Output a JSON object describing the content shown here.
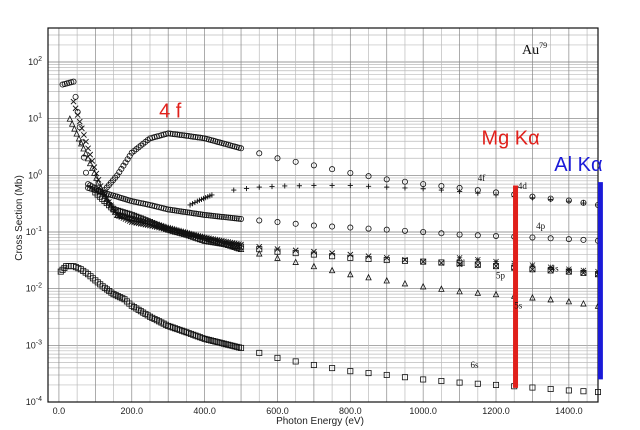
{
  "chart_data": {
    "type": "scatter",
    "title": "",
    "element_label": "Au",
    "element_superscript": "79",
    "xlabel": "Photon Energy (eV)",
    "ylabel": "Cross Section (Mb)",
    "xlim": [
      -30,
      1480
    ],
    "ylim_log10": [
      -4,
      2.6
    ],
    "log_y": true,
    "grid": true,
    "x_ticks": [
      "0.0",
      "200.0",
      "400.0",
      "600.0",
      "800.0",
      "1000.0",
      "1200.0",
      "1400.0"
    ],
    "x_tick_values": [
      0,
      200,
      400,
      600,
      800,
      1000,
      1200,
      1400
    ],
    "y_ticks": [
      {
        "exp": -4,
        "base": "10",
        "sup": "-4"
      },
      {
        "exp": -3,
        "base": "10",
        "sup": "-3"
      },
      {
        "exp": -2,
        "base": "10",
        "sup": "-2"
      },
      {
        "exp": -1,
        "base": "10",
        "sup": "-1"
      },
      {
        "exp": 0,
        "base": "10",
        "sup": "0"
      },
      {
        "exp": 1,
        "base": "10",
        "sup": "1"
      },
      {
        "exp": 2,
        "base": "10",
        "sup": "2"
      }
    ],
    "series": [
      {
        "name": "4f",
        "marker": "circle",
        "color": "#111111",
        "x": [
          10,
          40,
          80,
          120,
          160,
          200,
          250,
          300,
          350,
          400,
          500,
          600,
          700,
          800,
          900,
          1000,
          1100,
          1200,
          1300,
          1400,
          1480
        ],
        "y": [
          40,
          45,
          0.6,
          0.5,
          1.0,
          2.5,
          4.5,
          5.5,
          5.0,
          4.5,
          3.0,
          2.0,
          1.5,
          1.1,
          0.85,
          0.7,
          0.6,
          0.5,
          0.42,
          0.36,
          0.3
        ]
      },
      {
        "name": "4d",
        "marker": "plus",
        "color": "#111111",
        "x": [
          360,
          380,
          420,
          480,
          550,
          620,
          700,
          800,
          900,
          1000,
          1100,
          1200,
          1300,
          1400,
          1480
        ],
        "y": [
          0.3,
          0.35,
          0.45,
          0.55,
          0.62,
          0.65,
          0.66,
          0.66,
          0.62,
          0.58,
          0.52,
          0.45,
          0.4,
          0.35,
          0.3
        ]
      },
      {
        "name": "4p",
        "marker": "circle",
        "color": "#111111",
        "x": [
          80,
          120,
          160,
          200,
          250,
          300,
          400,
          500,
          600,
          700,
          800,
          900,
          1000,
          1100,
          1200,
          1300,
          1400,
          1480
        ],
        "y": [
          0.7,
          0.5,
          0.42,
          0.35,
          0.3,
          0.25,
          0.2,
          0.17,
          0.15,
          0.13,
          0.12,
          0.11,
          0.1,
          0.09,
          0.085,
          0.08,
          0.075,
          0.07
        ]
      },
      {
        "name": "5d",
        "marker": "square",
        "color": "#111111",
        "x": [
          100,
          150,
          200,
          250,
          300,
          350,
          400,
          500,
          600,
          700,
          800,
          900,
          1000,
          1100,
          1200,
          1300,
          1400,
          1480
        ],
        "y": [
          0.5,
          0.25,
          0.2,
          0.15,
          0.11,
          0.09,
          0.07,
          0.055,
          0.045,
          0.04,
          0.035,
          0.032,
          0.03,
          0.028,
          0.025,
          0.022,
          0.02,
          0.018
        ]
      },
      {
        "name": "5p",
        "marker": "x",
        "color": "#111111",
        "x": [
          40,
          80,
          120,
          160,
          200,
          250,
          300,
          400,
          500,
          600,
          700,
          800,
          900,
          1000,
          1100,
          1200,
          1300,
          1400,
          1480
        ],
        "y": [
          20,
          3,
          0.5,
          0.2,
          0.15,
          0.13,
          0.11,
          0.08,
          0.06,
          0.05,
          0.045,
          0.04,
          0.035,
          0.03,
          0.027,
          0.025,
          0.022,
          0.02,
          0.018
        ]
      },
      {
        "name": "4s",
        "marker": "star",
        "color": "#111111",
        "x": [
          1100,
          1200,
          1300,
          1400,
          1480
        ],
        "y": [
          0.035,
          0.03,
          0.026,
          0.022,
          0.02
        ]
      },
      {
        "name": "5s",
        "marker": "triangle",
        "color": "#111111",
        "x": [
          30,
          80,
          120,
          160,
          200,
          250,
          300,
          400,
          500,
          600,
          700,
          800,
          900,
          1000,
          1100,
          1200,
          1300,
          1400,
          1480
        ],
        "y": [
          10,
          2.0,
          0.5,
          0.2,
          0.18,
          0.15,
          0.12,
          0.08,
          0.05,
          0.035,
          0.025,
          0.018,
          0.014,
          0.011,
          0.009,
          0.008,
          0.007,
          0.006,
          0.005
        ]
      },
      {
        "name": "6s",
        "marker": "square",
        "color": "#111111",
        "x": [
          5,
          20,
          40,
          60,
          80,
          100,
          120,
          150,
          180,
          200,
          250,
          300,
          350,
          400,
          500,
          600,
          700,
          800,
          900,
          1000,
          1100,
          1200,
          1300,
          1400,
          1480
        ],
        "y": [
          0.02,
          0.025,
          0.025,
          0.022,
          0.018,
          0.014,
          0.011,
          0.008,
          0.0065,
          0.005,
          0.0032,
          0.0022,
          0.0017,
          0.0013,
          0.0009,
          0.0006,
          0.00045,
          0.00035,
          0.0003,
          0.00025,
          0.00022,
          0.0002,
          0.00018,
          0.00016,
          0.00015
        ]
      }
    ],
    "annotations": [
      {
        "text": "4 f",
        "x": 275,
        "y_log10": 1.02,
        "color": "#e0201b",
        "size": 20
      },
      {
        "text": "Mg Kα",
        "x": 1160,
        "y_log10": 0.54,
        "color": "#e0201b",
        "size": 20
      },
      {
        "text": "Al Kα",
        "x": 1360,
        "y_log10": 0.08,
        "color": "#1a1ad8",
        "size": 20
      }
    ],
    "reference_lines": [
      {
        "name": "Mg Kα",
        "x": 1253.6,
        "color": "#e0201b",
        "y_from_log10": -3.75,
        "y_to_log10": -0.18
      },
      {
        "name": "Al Kα",
        "x": 1486.6,
        "color": "#1a1ad8",
        "y_from_log10": -3.6,
        "y_to_log10": -0.12
      }
    ],
    "orbital_labels": [
      {
        "text": "4f",
        "x": 1150,
        "y_log10": -0.1
      },
      {
        "text": "4d",
        "x": 1260,
        "y_log10": -0.24
      },
      {
        "text": "4p",
        "x": 1310,
        "y_log10": -0.95
      },
      {
        "text": "5d",
        "x": 1090,
        "y_log10": -1.6
      },
      {
        "text": "5p",
        "x": 1200,
        "y_log10": -1.82
      },
      {
        "text": "4s",
        "x": 1350,
        "y_log10": -1.7
      },
      {
        "text": "5s",
        "x": 1250,
        "y_log10": -2.35
      },
      {
        "text": "6s",
        "x": 1130,
        "y_log10": -3.4
      }
    ]
  }
}
